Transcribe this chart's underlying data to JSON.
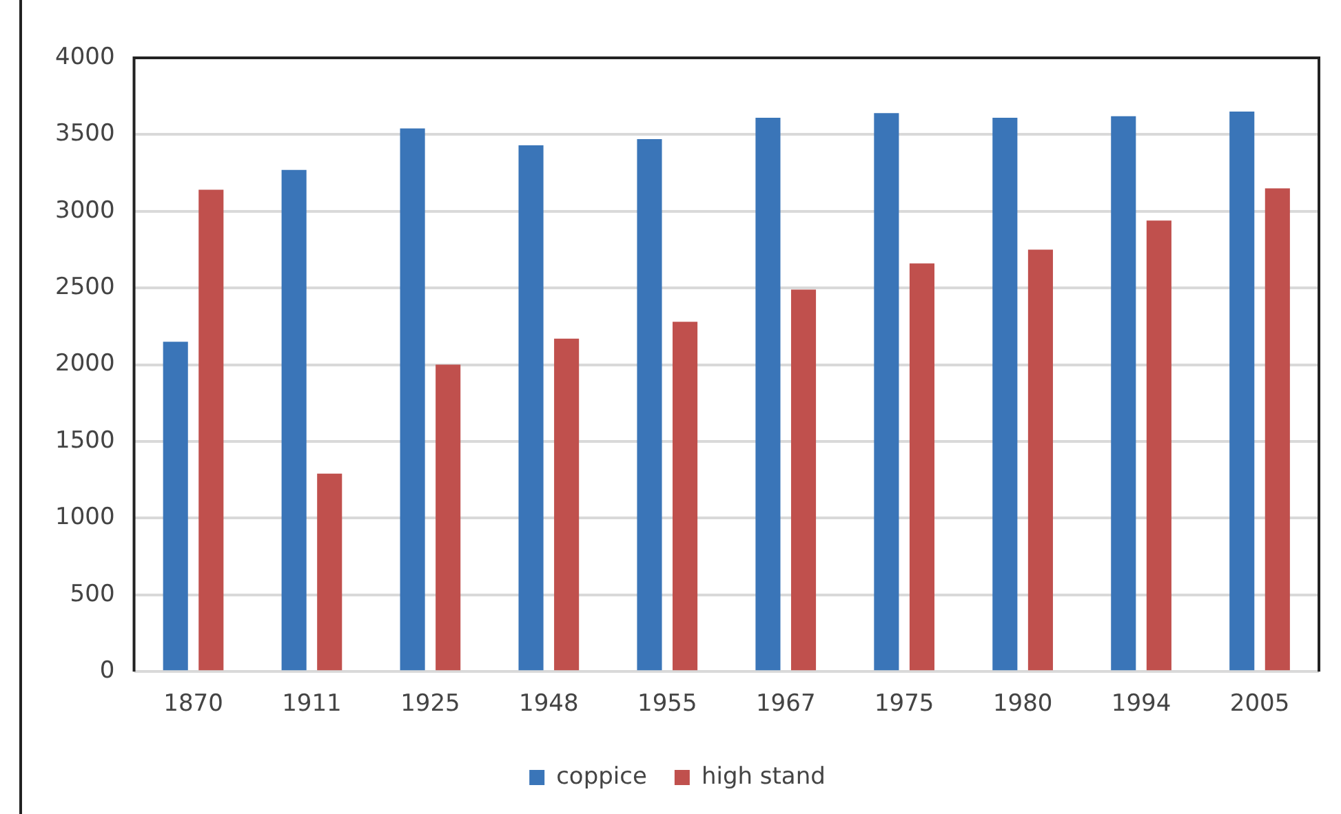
{
  "chart_data": {
    "type": "bar",
    "categories": [
      "1870",
      "1911",
      "1925",
      "1948",
      "1955",
      "1967",
      "1975",
      "1980",
      "1994",
      "2005"
    ],
    "series": [
      {
        "name": "coppice",
        "color": "#3a75b8",
        "values": [
          2150,
          3270,
          3540,
          3430,
          3470,
          3610,
          3640,
          3610,
          3620,
          3650
        ]
      },
      {
        "name": "high stand",
        "color": "#c0504d",
        "values": [
          3140,
          1290,
          2000,
          2170,
          2280,
          2490,
          2660,
          2750,
          2940,
          3150
        ]
      }
    ],
    "ylim": [
      0,
      4000
    ],
    "yticks": [
      0,
      500,
      1000,
      1500,
      2000,
      2500,
      3000,
      3500,
      4000
    ],
    "grid": "y",
    "legend": "bottom"
  }
}
